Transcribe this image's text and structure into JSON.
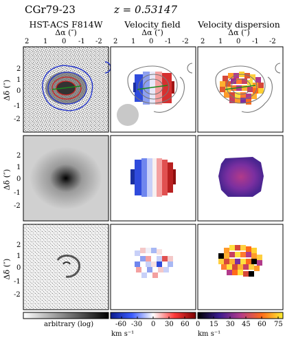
{
  "header": {
    "object_name": "CGr79-23",
    "redshift_label": "z = 0.53147"
  },
  "columns": [
    {
      "title": "HST-ACS F814W",
      "xlabel": "Δα (″)"
    },
    {
      "title": "Velocity field",
      "xlabel": "Δα (″)"
    },
    {
      "title": "Velocity dispersion",
      "xlabel": "Δα (″)"
    }
  ],
  "axes": {
    "x_ticks": [
      "2",
      "1",
      "0",
      "-1",
      "-2"
    ],
    "y_ticks": [
      "2",
      "1",
      "0",
      "-1",
      "-2"
    ],
    "ylabel": "Δδ (″)"
  },
  "colorbars": {
    "image": {
      "label": "arbitrary (log)"
    },
    "velocity": {
      "ticks": [
        "-60",
        "-30",
        "0",
        "30",
        "60"
      ],
      "unit": "km s⁻¹",
      "range": [
        -75,
        75
      ]
    },
    "dispersion": {
      "ticks": [
        "0",
        "15",
        "30",
        "45",
        "60",
        "75"
      ],
      "unit": "km s⁻¹",
      "range": [
        0,
        80
      ]
    }
  },
  "colors": {
    "contour_blue": "#2233cc",
    "contour_red": "#cc2222",
    "major_axis_green": "#1a8a1a",
    "psf_grey": "#c8c8c8"
  }
}
